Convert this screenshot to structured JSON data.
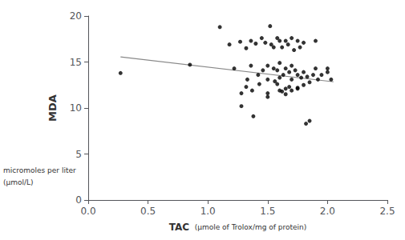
{
  "chart_data": {
    "type": "scatter",
    "xlabel": "TAC",
    "xlabel_unit": "(μmole of Trolox/mg of protein)",
    "ylabel": "MDA",
    "ylabel_unit": [
      "micromoles per liter",
      "(μmol/L)"
    ],
    "xlim": [
      0.0,
      2.5
    ],
    "ylim": [
      0,
      20
    ],
    "xticks": [
      {
        "value": 0.0,
        "label": "0.0"
      },
      0.5,
      {
        "value": 1.0,
        "label": "1.0"
      },
      1.5,
      {
        "value": 2.0,
        "label": "2.0"
      },
      2.5
    ],
    "yticks": [
      0,
      5,
      10,
      15,
      20
    ],
    "grid": false,
    "series": [
      {
        "type": "scatter",
        "color": "#000000",
        "marker": "circle",
        "x": [
          0.27,
          0.85,
          1.1,
          1.18,
          1.22,
          1.27,
          1.28,
          1.32,
          1.33,
          1.36,
          1.36,
          1.37,
          1.4,
          1.42,
          1.43,
          1.45,
          1.46,
          1.48,
          1.5,
          1.5,
          1.5,
          1.52,
          1.53,
          1.55,
          1.55,
          1.56,
          1.58,
          1.58,
          1.6,
          1.6,
          1.6,
          1.6,
          1.62,
          1.63,
          1.65,
          1.65,
          1.65,
          1.67,
          1.68,
          1.68,
          1.7,
          1.7,
          1.7,
          1.72,
          1.73,
          1.75,
          1.75,
          1.75,
          1.77,
          1.78,
          1.8,
          1.8,
          1.82,
          1.83,
          1.85,
          1.88,
          1.9,
          1.9,
          1.92,
          1.95,
          2.0,
          2.0,
          2.03,
          1.28,
          1.32,
          1.38,
          1.5,
          1.58,
          1.62,
          1.65,
          1.7,
          1.75,
          1.8,
          1.85
        ],
        "values": [
          13.8,
          14.7,
          18.8,
          16.9,
          14.3,
          17.2,
          11.6,
          16.5,
          13.1,
          17.3,
          14.6,
          11.9,
          17.0,
          13.6,
          12.6,
          17.6,
          14.1,
          17.1,
          14.6,
          13.1,
          11.6,
          18.9,
          16.9,
          16.6,
          14.3,
          12.9,
          17.6,
          14.1,
          17.3,
          14.9,
          13.3,
          11.9,
          16.6,
          13.6,
          17.3,
          14.3,
          12.1,
          16.9,
          13.9,
          12.3,
          17.6,
          14.6,
          13.1,
          16.3,
          14.1,
          17.3,
          13.6,
          12.1,
          16.6,
          13.3,
          17.1,
          13.9,
          8.3,
          13.4,
          8.6,
          13.6,
          17.3,
          14.3,
          13.1,
          13.6,
          13.9,
          14.3,
          13.1,
          10.2,
          12.3,
          9.1,
          11.2,
          12.6,
          11.8,
          11.5,
          11.9,
          12.2,
          12.5,
          12.8
        ]
      },
      {
        "type": "line",
        "color": "#888888",
        "line_style": "solid",
        "x": [
          0.27,
          2.05
        ],
        "values": [
          15.55,
          12.85
        ]
      }
    ]
  }
}
